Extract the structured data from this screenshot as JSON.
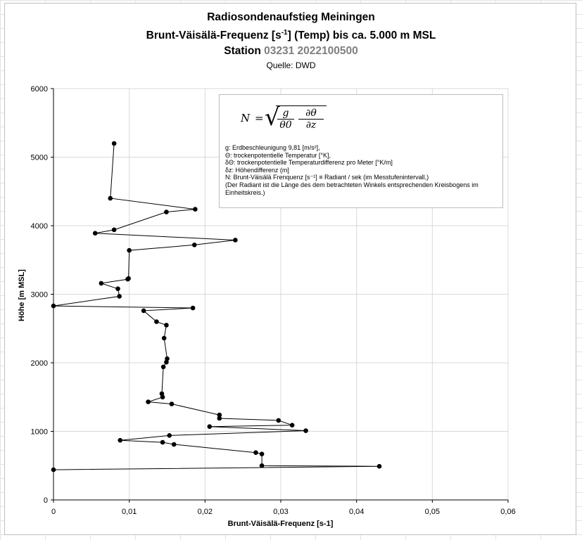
{
  "chart_data": {
    "type": "line",
    "title_line1": "Radiosondenaufstieg Meiningen",
    "title_line2_pre": "Brunt-Väisälä-Frequenz [s",
    "title_line2_sup": "-1",
    "title_line2_post": "] (Temp) bis ca. 5.000 m MSL",
    "title_line3_pre": "Station ",
    "title_line3_code": "03231 2022100500",
    "subtitle": "Quelle: DWD",
    "xlabel": "Brunt-Väisälä-Frequenz [s-1]",
    "ylabel": "Höhe [m MSL]",
    "xlim": [
      0,
      0.06
    ],
    "ylim": [
      0,
      6000
    ],
    "xticks": [
      0,
      0.01,
      0.02,
      0.03,
      0.04,
      0.05,
      0.06
    ],
    "xtick_labels": [
      "0",
      "0,01",
      "0,02",
      "0,03",
      "0,04",
      "0,05",
      "0,06"
    ],
    "yticks": [
      0,
      1000,
      2000,
      3000,
      4000,
      5000,
      6000
    ],
    "ytick_labels": [
      "0",
      "1000",
      "2000",
      "3000",
      "4000",
      "5000",
      "6000"
    ],
    "grid": true,
    "series": [
      {
        "name": "Brunt-Väisälä-Frequenz",
        "color": "#000000",
        "x": [
          0.008,
          0.0075,
          0.0187,
          0.0149,
          0.008,
          0.0055,
          0.024,
          0.0186,
          0.01,
          0.0099,
          0.0098,
          0.0063,
          0.0085,
          0.0087,
          0.0,
          0.0184,
          0.0119,
          0.0136,
          0.0149,
          0.0146,
          0.015,
          0.0149,
          0.0145,
          0.0143,
          0.0144,
          0.0125,
          0.0156,
          0.0219,
          0.0219,
          0.0297,
          0.0315,
          0.0206,
          0.0333,
          0.0153,
          0.0088,
          0.0144,
          0.0159,
          0.0267,
          0.0275,
          0.0275,
          0.043,
          0.0
        ],
        "y": [
          5200,
          4400,
          4240,
          4200,
          3940,
          3890,
          3790,
          3720,
          3640,
          3230,
          3220,
          3160,
          3080,
          2970,
          2830,
          2800,
          2760,
          2600,
          2550,
          2360,
          2060,
          2010,
          1940,
          1550,
          1500,
          1430,
          1400,
          1240,
          1190,
          1160,
          1090,
          1070,
          1010,
          940,
          870,
          840,
          810,
          690,
          670,
          500,
          490,
          440
        ]
      }
    ],
    "formula": {
      "lhs": "N",
      "eq": "=",
      "frac1_num": "g",
      "frac1_den": "θ0",
      "frac2_num": "∂θ",
      "frac2_den": "∂z"
    },
    "legend_lines": [
      "g: Erdbeschleunigung 9,81 [m/s²],",
      "Θ: trockenpotentielle Temperatur [°K],",
      "δΘ: trockenpotentielle Temperaturdifferenz pro Meter [°K/m]",
      "δz: Höhendifferenz (m]",
      "N: Brunt-Väisälä Frenquenz [s⁻¹] ≡ Radiant / sek (im Messtufenintervall,)",
      "(Der Radiant ist die Länge des dem betrachteten Winkels entsprechenden Kreisbogens im",
      "Einheitskreis.)"
    ]
  }
}
